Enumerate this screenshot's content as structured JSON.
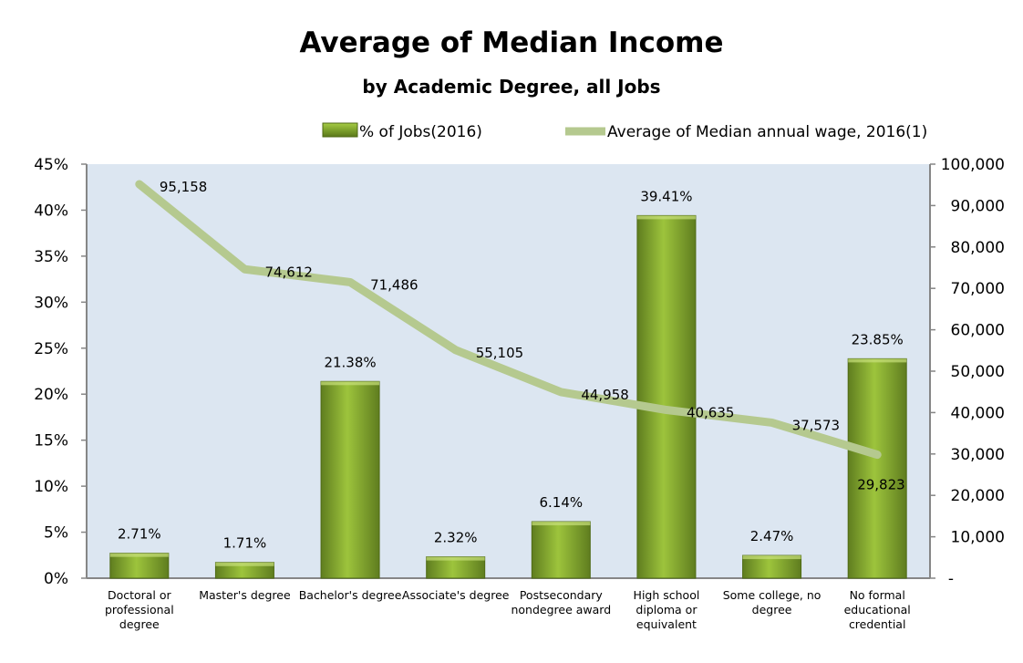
{
  "chart_data": {
    "type": "bar+line",
    "title": "Average of Median Income",
    "subtitle": "by Academic Degree, all Jobs",
    "categories": [
      [
        "Doctoral or",
        "professional",
        "degree"
      ],
      [
        "Master's degree"
      ],
      [
        "Bachelor's degree"
      ],
      [
        "Associate's degree"
      ],
      [
        "Postsecondary",
        "nondegree award"
      ],
      [
        "High school",
        "diploma or",
        "equivalent"
      ],
      [
        "Some college, no",
        "degree"
      ],
      [
        "No formal",
        "educational",
        "credential"
      ]
    ],
    "series": [
      {
        "name": "% of Jobs(2016)",
        "type": "bar",
        "axis": "left",
        "values": [
          2.71,
          1.71,
          21.38,
          2.32,
          6.14,
          39.41,
          2.47,
          23.85
        ],
        "labels": [
          "2.71%",
          "1.71%",
          "21.38%",
          "2.32%",
          "6.14%",
          "39.41%",
          "2.47%",
          "23.85%"
        ],
        "color": "#7a9a2e"
      },
      {
        "name": "Average of Median annual wage, 2016(1)",
        "type": "line",
        "axis": "right",
        "values": [
          95158,
          74612,
          71486,
          55105,
          44958,
          40635,
          37573,
          29823
        ],
        "labels": [
          "95,158",
          "74,612",
          "71,486",
          "55,105",
          "44,958",
          "40,635",
          "37,573",
          "29,823"
        ],
        "color": "#b5c98f"
      }
    ],
    "y_left": {
      "lim": [
        0,
        45
      ],
      "ticks": [
        0,
        5,
        10,
        15,
        20,
        25,
        30,
        35,
        40,
        45
      ],
      "tick_labels": [
        "0%",
        "5%",
        "10%",
        "15%",
        "20%",
        "25%",
        "30%",
        "35%",
        "40%",
        "45%"
      ]
    },
    "y_right": {
      "lim": [
        0,
        100000
      ],
      "ticks": [
        0,
        10000,
        20000,
        30000,
        40000,
        50000,
        60000,
        70000,
        80000,
        90000,
        100000
      ],
      "tick_labels": [
        "-",
        "10,000",
        "20,000",
        "30,000",
        "40,000",
        "50,000",
        "60,000",
        "70,000",
        "80,000",
        "90,000",
        "100,000"
      ]
    },
    "grid": false,
    "legend_position": "top",
    "plot_background": "#dce6f1"
  }
}
